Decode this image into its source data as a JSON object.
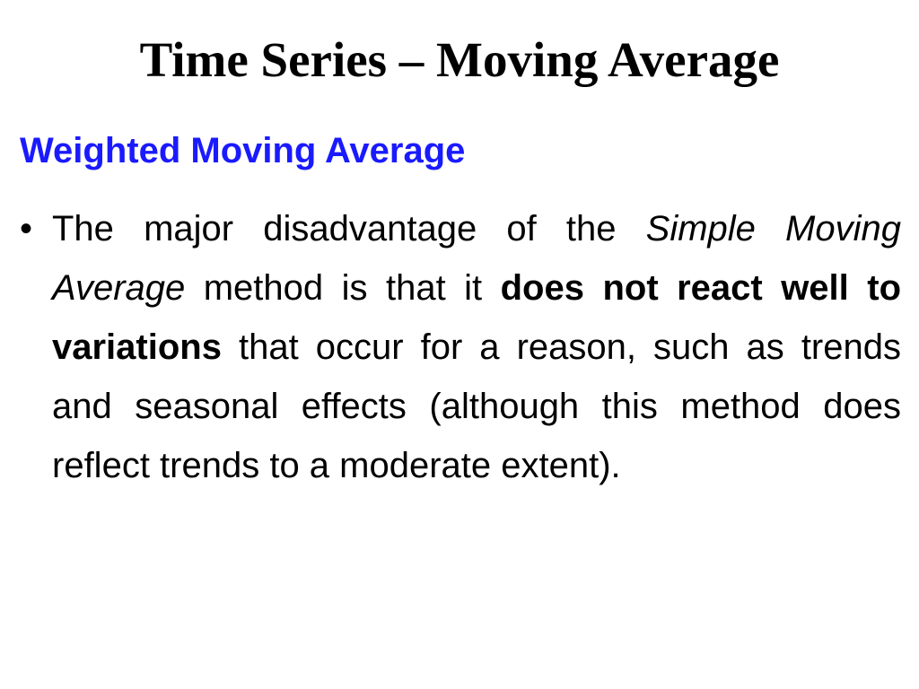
{
  "slide": {
    "title": "Time Series – Moving Average",
    "heading": "Weighted Moving Average",
    "bullet": {
      "mark": "•",
      "part1": "The major disadvantage of the ",
      "italic1": "Simple Moving Average",
      "part2": " method is that it ",
      "bold1": "does not react well to variations",
      "part3": " that occur for a reason, such as trends and seasonal effects (although this method does reflect trends to a moderate extent)."
    },
    "colors": {
      "heading": "#1a1aff",
      "text": "#000000",
      "background": "#ffffff"
    }
  }
}
